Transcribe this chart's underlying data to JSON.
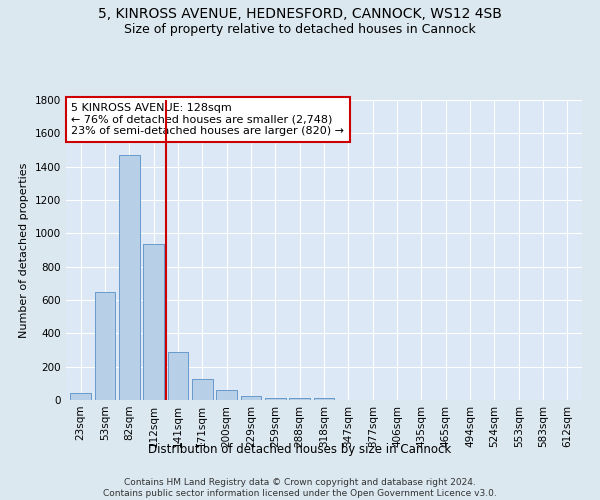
{
  "title1": "5, KINROSS AVENUE, HEDNESFORD, CANNOCK, WS12 4SB",
  "title2": "Size of property relative to detached houses in Cannock",
  "xlabel": "Distribution of detached houses by size in Cannock",
  "ylabel": "Number of detached properties",
  "bar_labels": [
    "23sqm",
    "53sqm",
    "82sqm",
    "112sqm",
    "141sqm",
    "171sqm",
    "200sqm",
    "229sqm",
    "259sqm",
    "288sqm",
    "318sqm",
    "347sqm",
    "377sqm",
    "406sqm",
    "435sqm",
    "465sqm",
    "494sqm",
    "524sqm",
    "553sqm",
    "583sqm",
    "612sqm"
  ],
  "bar_values": [
    40,
    650,
    1470,
    935,
    290,
    125,
    60,
    25,
    15,
    10,
    10,
    0,
    0,
    0,
    0,
    0,
    0,
    0,
    0,
    0,
    0
  ],
  "bar_color": "#b8cfe8",
  "bar_edgecolor": "#6699cc",
  "vline_x": 3.5,
  "vline_color": "#cc0000",
  "annotation_text": "5 KINROSS AVENUE: 128sqm\n← 76% of detached houses are smaller (2,748)\n23% of semi-detached houses are larger (820) →",
  "annotation_box_color": "#ffffff",
  "annotation_box_edgecolor": "#cc0000",
  "ylim": [
    0,
    1800
  ],
  "yticks": [
    0,
    200,
    400,
    600,
    800,
    1000,
    1200,
    1400,
    1600,
    1800
  ],
  "background_color": "#dce8f0",
  "plot_bg_color": "#dce8f5",
  "grid_color": "#ffffff",
  "footnote": "Contains HM Land Registry data © Crown copyright and database right 2024.\nContains public sector information licensed under the Open Government Licence v3.0.",
  "title1_fontsize": 10,
  "title2_fontsize": 9,
  "xlabel_fontsize": 8.5,
  "ylabel_fontsize": 8,
  "tick_fontsize": 7.5,
  "annotation_fontsize": 8,
  "footnote_fontsize": 6.5
}
